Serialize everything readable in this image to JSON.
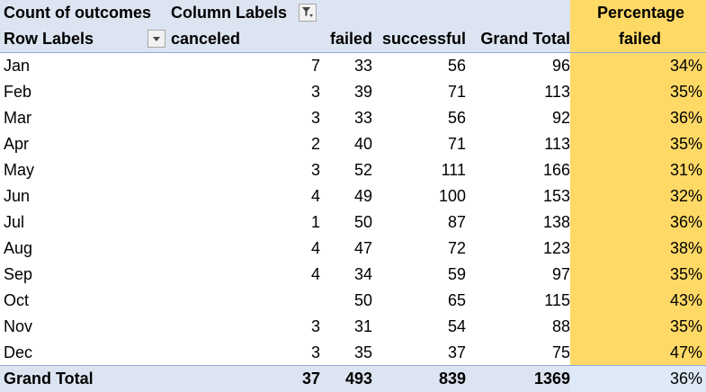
{
  "header": {
    "row1": {
      "count_label": "Count of outcomes",
      "column_labels": "Column Labels",
      "percentage_line1": "Percentage"
    },
    "row2": {
      "row_labels": "Row Labels",
      "canceled": "canceled",
      "failed": "failed",
      "successful": "successful",
      "grand_total": "Grand Total",
      "percentage_line2": "failed"
    }
  },
  "icons": {
    "column_filter": "filter-funnel-icon",
    "row_filter": "dropdown-arrow-icon"
  },
  "rows": [
    {
      "label": "Jan",
      "canceled": "7",
      "failed": "33",
      "successful": "56",
      "total": "96",
      "pct": "34%"
    },
    {
      "label": "Feb",
      "canceled": "3",
      "failed": "39",
      "successful": "71",
      "total": "113",
      "pct": "35%"
    },
    {
      "label": "Mar",
      "canceled": "3",
      "failed": "33",
      "successful": "56",
      "total": "92",
      "pct": "36%"
    },
    {
      "label": "Apr",
      "canceled": "2",
      "failed": "40",
      "successful": "71",
      "total": "113",
      "pct": "35%"
    },
    {
      "label": "May",
      "canceled": "3",
      "failed": "52",
      "successful": "111",
      "total": "166",
      "pct": "31%"
    },
    {
      "label": "Jun",
      "canceled": "4",
      "failed": "49",
      "successful": "100",
      "total": "153",
      "pct": "32%"
    },
    {
      "label": "Jul",
      "canceled": "1",
      "failed": "50",
      "successful": "87",
      "total": "138",
      "pct": "36%"
    },
    {
      "label": "Aug",
      "canceled": "4",
      "failed": "47",
      "successful": "72",
      "total": "123",
      "pct": "38%"
    },
    {
      "label": "Sep",
      "canceled": "4",
      "failed": "34",
      "successful": "59",
      "total": "97",
      "pct": "35%"
    },
    {
      "label": "Oct",
      "canceled": "",
      "failed": "50",
      "successful": "65",
      "total": "115",
      "pct": "43%"
    },
    {
      "label": "Nov",
      "canceled": "3",
      "failed": "31",
      "successful": "54",
      "total": "88",
      "pct": "35%"
    },
    {
      "label": "Dec",
      "canceled": "3",
      "failed": "35",
      "successful": "37",
      "total": "75",
      "pct": "47%"
    }
  ],
  "grand_total": {
    "label": "Grand Total",
    "canceled": "37",
    "failed": "493",
    "successful": "839",
    "total": "1369",
    "pct": "36%"
  },
  "colors": {
    "header_fill": "#dde4f1",
    "percentage_fill": "#ffd966",
    "grand_total_pct_fill": "#dde9f6"
  }
}
